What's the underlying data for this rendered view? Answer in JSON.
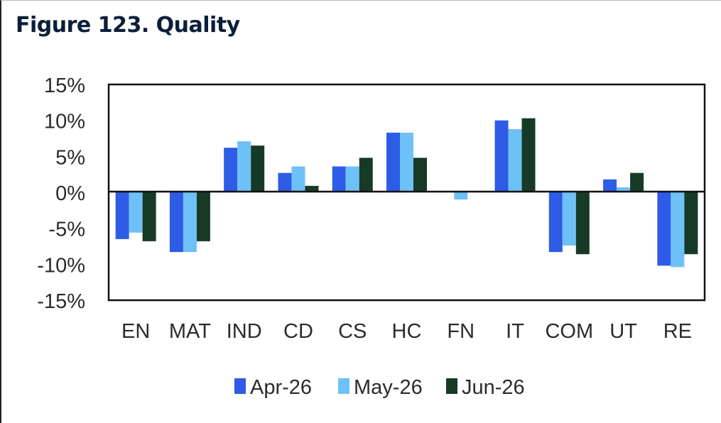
{
  "figure_title": "Figure 123. Quality",
  "colors": {
    "Apr-26": "#2e5ce6",
    "May-26": "#6ec1f7",
    "Jun-26": "#173a26"
  },
  "chart_data": {
    "type": "bar",
    "title": "Figure 123. Quality",
    "xlabel": "",
    "ylabel": "",
    "categories": [
      "EN",
      "MAT",
      "IND",
      "CD",
      "CS",
      "HC",
      "FN",
      "IT",
      "COM",
      "UT",
      "RE"
    ],
    "series": [
      {
        "name": "Apr-26",
        "values": [
          -6.5,
          -8.3,
          6.2,
          2.7,
          3.6,
          8.3,
          0.0,
          10.0,
          -8.3,
          1.8,
          -10.2
        ]
      },
      {
        "name": "May-26",
        "values": [
          -5.6,
          -8.3,
          7.1,
          3.6,
          3.6,
          8.3,
          -1.0,
          8.8,
          -7.4,
          0.7,
          -10.4
        ]
      },
      {
        "name": "Jun-26",
        "values": [
          -6.8,
          -6.8,
          6.5,
          0.9,
          4.8,
          4.8,
          0.0,
          10.3,
          -8.6,
          2.7,
          -8.6
        ]
      }
    ],
    "ylim": [
      -15,
      15
    ],
    "yticks": [
      "15%",
      "10%",
      "5%",
      "0%",
      "-5%",
      "-10%",
      "-15%"
    ],
    "grid": false,
    "legend_position": "bottom"
  }
}
